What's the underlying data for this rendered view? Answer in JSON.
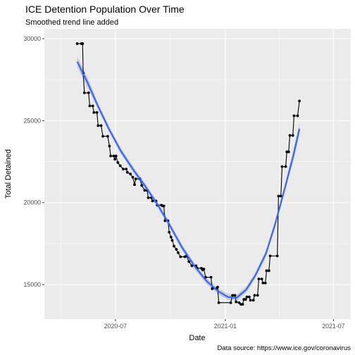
{
  "chart_data": {
    "type": "line",
    "title": "ICE Detention Population Over Time",
    "subtitle": "Smoothed trend line added",
    "xlabel": "Date",
    "ylabel": "Total Detained",
    "caption": "Data source: https://www.ice.gov/coronavirus",
    "xlim": [
      "2020-03-04",
      "2021-07-30"
    ],
    "ylim": [
      12900,
      30600
    ],
    "x_ticks": [
      {
        "date": "2020-07-01",
        "label": "2020-07"
      },
      {
        "date": "2021-01-01",
        "label": "2021-01"
      },
      {
        "date": "2021-07-01",
        "label": "2021-07"
      }
    ],
    "y_ticks": [
      {
        "value": 15000,
        "label": "15000"
      },
      {
        "value": 20000,
        "label": "20000"
      },
      {
        "value": 25000,
        "label": "25000"
      },
      {
        "value": 30000,
        "label": "30000"
      }
    ],
    "grid": true,
    "series": [
      {
        "color": "#000000",
        "style": "step line with points",
        "points": [
          [
            "2020-04-28",
            29700
          ],
          [
            "2020-05-05",
            29700
          ],
          [
            "2020-05-07",
            29700
          ],
          [
            "2020-05-08",
            27900
          ],
          [
            "2020-05-10",
            26700
          ],
          [
            "2020-05-17",
            26700
          ],
          [
            "2020-05-19",
            25900
          ],
          [
            "2020-05-24",
            25900
          ],
          [
            "2020-05-26",
            25500
          ],
          [
            "2020-05-31",
            25500
          ],
          [
            "2020-06-02",
            24700
          ],
          [
            "2020-06-07",
            24700
          ],
          [
            "2020-06-10",
            24050
          ],
          [
            "2020-06-18",
            24050
          ],
          [
            "2020-06-21",
            23450
          ],
          [
            "2020-06-23",
            22850
          ],
          [
            "2020-06-28",
            22850
          ],
          [
            "2020-06-30",
            22650
          ],
          [
            "2020-07-02",
            22850
          ],
          [
            "2020-07-05",
            22450
          ],
          [
            "2020-07-09",
            22250
          ],
          [
            "2020-07-14",
            22050
          ],
          [
            "2020-07-19",
            22050
          ],
          [
            "2020-07-21",
            21850
          ],
          [
            "2020-07-26",
            21750
          ],
          [
            "2020-07-30",
            21550
          ],
          [
            "2020-08-02",
            21100
          ],
          [
            "2020-08-04",
            21450
          ],
          [
            "2020-08-11",
            21450
          ],
          [
            "2020-08-14",
            21050
          ],
          [
            "2020-08-19",
            20750
          ],
          [
            "2020-08-23",
            20750
          ],
          [
            "2020-08-25",
            20300
          ],
          [
            "2020-08-30",
            20300
          ],
          [
            "2020-09-01",
            20100
          ],
          [
            "2020-09-07",
            20100
          ],
          [
            "2020-09-09",
            19850
          ],
          [
            "2020-09-16",
            19850
          ],
          [
            "2020-09-18",
            19800
          ],
          [
            "2020-09-20",
            19800
          ],
          [
            "2020-09-22",
            18900
          ],
          [
            "2020-09-27",
            18900
          ],
          [
            "2020-09-29",
            18200
          ],
          [
            "2020-10-02",
            17900
          ],
          [
            "2020-10-04",
            17700
          ],
          [
            "2020-10-07",
            17350
          ],
          [
            "2020-10-11",
            17150
          ],
          [
            "2020-10-14",
            16950
          ],
          [
            "2020-10-18",
            16700
          ],
          [
            "2020-10-25",
            16700
          ],
          [
            "2020-10-28",
            16750
          ],
          [
            "2020-11-01",
            16400
          ],
          [
            "2020-11-06",
            16150
          ],
          [
            "2020-11-13",
            16150
          ],
          [
            "2020-11-15",
            16000
          ],
          [
            "2020-11-22",
            16000
          ],
          [
            "2020-11-24",
            15900
          ],
          [
            "2020-11-26",
            15950
          ],
          [
            "2020-11-29",
            15450
          ],
          [
            "2020-12-08",
            15450
          ],
          [
            "2020-12-10",
            14750
          ],
          [
            "2020-12-17",
            14750
          ],
          [
            "2020-12-19",
            14850
          ],
          [
            "2020-12-21",
            13900
          ],
          [
            "2021-01-10",
            13900
          ],
          [
            "2021-01-13",
            14350
          ],
          [
            "2021-01-17",
            14350
          ],
          [
            "2021-01-19",
            13950
          ],
          [
            "2021-01-24",
            13900
          ],
          [
            "2021-01-27",
            13800
          ],
          [
            "2021-01-30",
            13800
          ],
          [
            "2021-02-01",
            14100
          ],
          [
            "2021-02-04",
            14100
          ],
          [
            "2021-02-06",
            14250
          ],
          [
            "2021-02-10",
            14250
          ],
          [
            "2021-02-12",
            14050
          ],
          [
            "2021-02-17",
            14050
          ],
          [
            "2021-02-19",
            14350
          ],
          [
            "2021-02-24",
            14350
          ],
          [
            "2021-02-26",
            15350
          ],
          [
            "2021-03-03",
            15350
          ],
          [
            "2021-03-05",
            15100
          ],
          [
            "2021-03-09",
            15100
          ],
          [
            "2021-03-11",
            15850
          ],
          [
            "2021-03-15",
            15850
          ],
          [
            "2021-03-17",
            16750
          ],
          [
            "2021-03-29",
            16750
          ],
          [
            "2021-03-31",
            20400
          ],
          [
            "2021-04-04",
            20400
          ],
          [
            "2021-04-06",
            22200
          ],
          [
            "2021-04-12",
            22200
          ],
          [
            "2021-04-14",
            23100
          ],
          [
            "2021-04-17",
            23100
          ],
          [
            "2021-04-19",
            24100
          ],
          [
            "2021-04-24",
            24100
          ],
          [
            "2021-04-26",
            25300
          ],
          [
            "2021-05-02",
            25300
          ],
          [
            "2021-05-05",
            26200
          ]
        ]
      },
      {
        "color": "#3366ff",
        "style": "smoothed trend with confidence band",
        "band_color": "#999999",
        "points": [
          [
            "2020-04-28",
            28600
          ],
          [
            "2020-05-15",
            27350
          ],
          [
            "2020-06-01",
            25950
          ],
          [
            "2020-06-20",
            24500
          ],
          [
            "2020-07-10",
            23150
          ],
          [
            "2020-08-01",
            21950
          ],
          [
            "2020-08-20",
            21000
          ],
          [
            "2020-09-10",
            19850
          ],
          [
            "2020-10-01",
            18550
          ],
          [
            "2020-10-20",
            17300
          ],
          [
            "2020-11-10",
            16150
          ],
          [
            "2020-12-01",
            15200
          ],
          [
            "2020-12-20",
            14600
          ],
          [
            "2021-01-05",
            14250
          ],
          [
            "2021-01-20",
            14200
          ],
          [
            "2021-02-05",
            14700
          ],
          [
            "2021-02-20",
            15550
          ],
          [
            "2021-03-10",
            16900
          ],
          [
            "2021-03-25",
            18650
          ],
          [
            "2021-04-10",
            20800
          ],
          [
            "2021-04-25",
            22900
          ],
          [
            "2021-05-05",
            24500
          ]
        ]
      }
    ]
  }
}
